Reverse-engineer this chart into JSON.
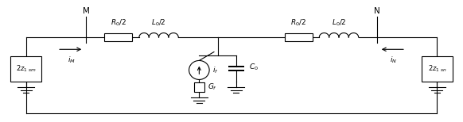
{
  "fig_width": 5.82,
  "fig_height": 1.54,
  "dpi": 100,
  "bg_color": "#ffffff",
  "line_color": "#000000",
  "line_width": 0.8,
  "M_label": "M",
  "N_label": "N",
  "R0_2_label": "R$_0$/2",
  "L0_2_label": "L$_0$/2",
  "C0_label": "C$_0$",
  "Gf_label": "G$_f$",
  "if_label": "i$_f$",
  "iM_label": "i$_M$",
  "iN_label": "i$_N$",
  "z1sm_label": "2z$_{1}$ $_{sm}$",
  "z1sn_label": "2z$_{1}$ $_{sn}$",
  "xlim": [
    0,
    10
  ],
  "ylim": [
    0,
    2.8
  ]
}
